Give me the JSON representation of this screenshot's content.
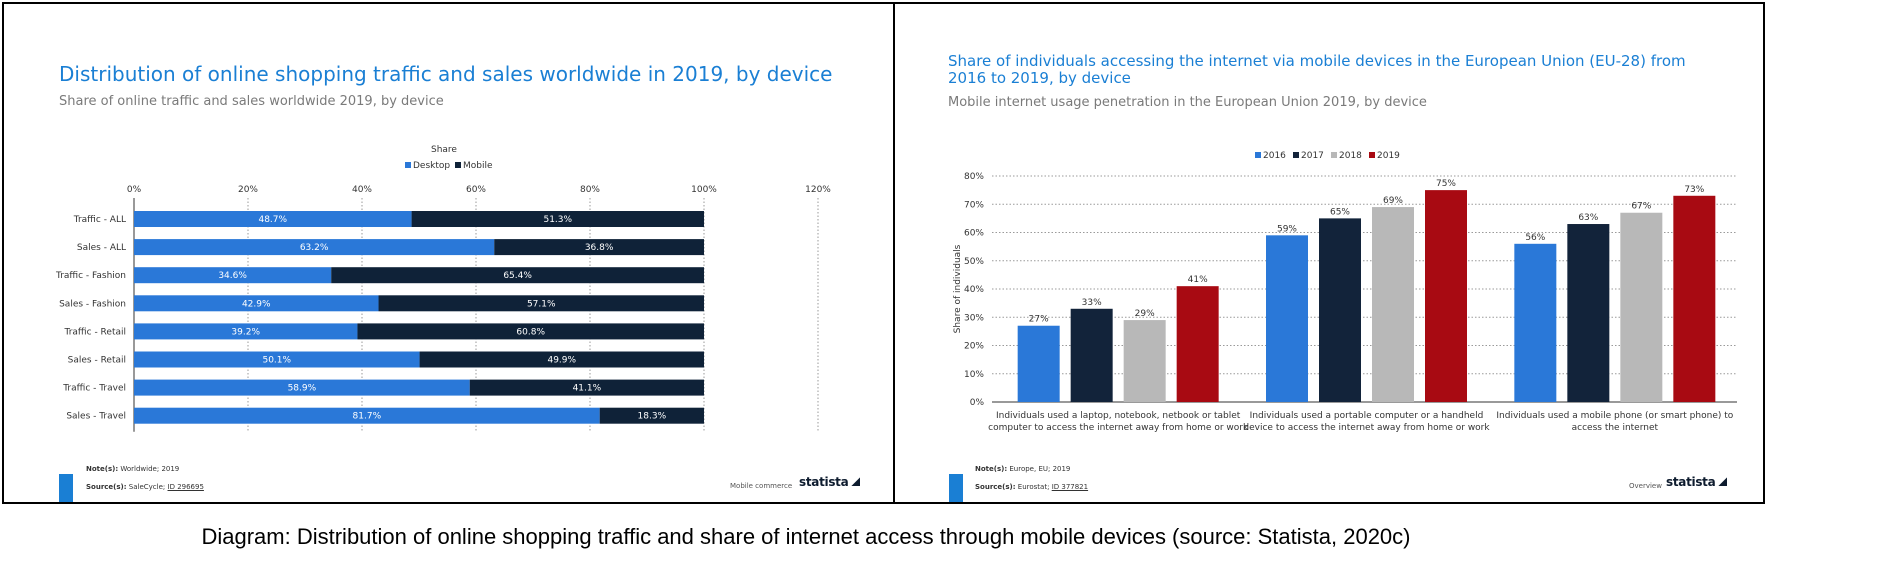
{
  "caption": "Diagram: Distribution of online shopping traffic and share of internet access through mobile devices (source: Statista, 2020c)",
  "left_panel": {
    "title": "Distribution of online shopping traffic and sales worldwide in 2019, by device",
    "subtitle": "Share of online traffic and sales worldwide 2019, by device",
    "notes_label": "Note(s):",
    "notes_text": "Worldwide; 2019",
    "source_label": "Source(s):",
    "source_text": "SaleCycle;",
    "source_id": "ID 296695",
    "tag": "Mobile commerce",
    "brand": "statista"
  },
  "right_panel": {
    "title": "Share of individuals accessing the internet via mobile devices in the European Union (EU-28) from 2016 to 2019, by device",
    "subtitle": "Mobile internet usage penetration in the European Union 2019, by device",
    "notes_label": "Note(s):",
    "notes_text": "Europe, EU; 2019",
    "source_label": "Source(s):",
    "source_text": "Eurostat;",
    "source_id": "ID 377821",
    "tag": "Overview",
    "brand": "statista"
  },
  "chart_data": [
    {
      "type": "bar",
      "orientation": "horizontal",
      "stacked": true,
      "legend_title": "Share",
      "legend_position": "top",
      "categories": [
        "Traffic - ALL",
        "Sales - ALL",
        "Traffic - Fashion",
        "Sales - Fashion",
        "Traffic - Retail",
        "Sales - Retail",
        "Traffic - Travel",
        "Sales - Travel"
      ],
      "series": [
        {
          "name": "Desktop",
          "color": "#2a78d8",
          "values": [
            48.7,
            63.2,
            34.6,
            42.9,
            39.2,
            50.1,
            58.9,
            81.7
          ]
        },
        {
          "name": "Mobile",
          "color": "#0f2238",
          "values": [
            51.3,
            36.8,
            65.4,
            57.1,
            60.8,
            49.9,
            41.1,
            18.3
          ]
        }
      ],
      "xlim": [
        0,
        120
      ],
      "x_ticks": [
        "0%",
        "20%",
        "40%",
        "60%",
        "80%",
        "100%",
        "120%"
      ],
      "grid": true
    },
    {
      "type": "bar",
      "orientation": "vertical",
      "legend_position": "top",
      "ylabel": "Share of individuals",
      "categories": [
        [
          "Individuals used a laptop, notebook, netbook or tablet",
          "computer to access the internet away from home or work"
        ],
        [
          "Individuals used a portable computer or a handheld",
          "device to access the internet away from home or work"
        ],
        [
          "Individuals used a mobile phone (or smart phone) to",
          "access the internet"
        ]
      ],
      "series": [
        {
          "name": "2016",
          "color": "#2a78d8",
          "values": [
            27,
            59,
            56
          ]
        },
        {
          "name": "2017",
          "color": "#12233a",
          "values": [
            33,
            65,
            63
          ]
        },
        {
          "name": "2018",
          "color": "#b8b8b8",
          "values": [
            29,
            69,
            67
          ]
        },
        {
          "name": "2019",
          "color": "#a80a12",
          "values": [
            41,
            75,
            73
          ]
        }
      ],
      "ylim": [
        0,
        80
      ],
      "y_ticks": [
        "0%",
        "10%",
        "20%",
        "30%",
        "40%",
        "50%",
        "60%",
        "70%",
        "80%"
      ],
      "grid": true
    }
  ]
}
